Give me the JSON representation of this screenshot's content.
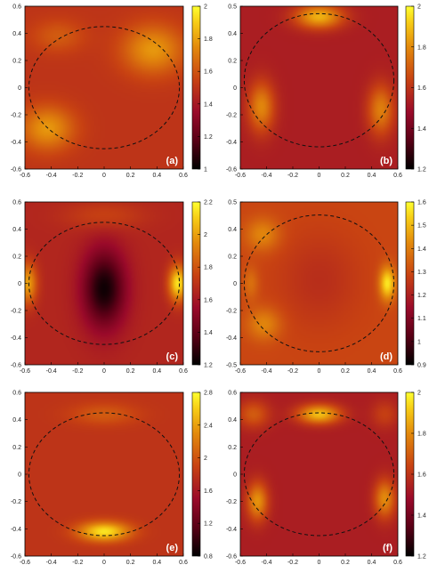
{
  "chart_data": [
    {
      "type": "heatmap",
      "panel_label": "(a)",
      "xlim": [
        -0.6,
        0.6
      ],
      "ylim": [
        -0.6,
        0.6
      ],
      "x_ticks": [
        "-0.6",
        "-0.4",
        "-0.2",
        "0",
        "0.2",
        "0.4",
        "0.6"
      ],
      "y_ticks": [
        "0.6",
        "0.4",
        "0.2",
        "0",
        "-0.2",
        "-0.4",
        "-0.6"
      ],
      "colorbar": {
        "range": [
          1,
          2
        ],
        "ticks": [
          "2",
          "1.8",
          "1.6",
          "1.4",
          "1.2",
          "1"
        ]
      },
      "background_level": 0.5,
      "ellipse": {
        "center": [
          0,
          0
        ],
        "rx": 0.57,
        "ry": 0.45,
        "style": "dashed"
      },
      "hotspots": [
        {
          "x": 0.37,
          "y": 0.28,
          "rx": 0.23,
          "ry": 0.18,
          "amp": 0.28
        },
        {
          "x": -0.43,
          "y": -0.3,
          "rx": 0.2,
          "ry": 0.16,
          "amp": 0.28
        },
        {
          "x": -0.35,
          "y": 0.38,
          "rx": 0.2,
          "ry": 0.12,
          "amp": 0.12
        }
      ]
    },
    {
      "type": "heatmap",
      "panel_label": "(b)",
      "xlim": [
        -0.6,
        0.6
      ],
      "ylim": [
        -0.6,
        0.5
      ],
      "x_ticks": [
        "-0.6",
        "-0.4",
        "-0.2",
        "0",
        "0.2",
        "0.4",
        "0.6"
      ],
      "y_ticks": [
        "0.5",
        "0.4",
        "0.2",
        "0",
        "-0.2",
        "-0.4",
        "-0.6"
      ],
      "colorbar": {
        "range": [
          1.2,
          2
        ],
        "ticks": [
          "2",
          "1.8",
          "1.6",
          "1.4",
          "1.2"
        ]
      },
      "background_level": 0.42,
      "ellipse": {
        "center": [
          0,
          0
        ],
        "rx": 0.57,
        "ry": 0.45,
        "style": "dashed"
      },
      "hotspots": [
        {
          "x": 0.0,
          "y": 0.43,
          "rx": 0.18,
          "ry": 0.08,
          "amp": 0.42
        },
        {
          "x": -0.44,
          "y": -0.18,
          "rx": 0.1,
          "ry": 0.17,
          "amp": 0.32
        },
        {
          "x": 0.47,
          "y": -0.2,
          "rx": 0.1,
          "ry": 0.17,
          "amp": 0.3
        }
      ]
    },
    {
      "type": "heatmap",
      "panel_label": "(c)",
      "xlim": [
        -0.6,
        0.6
      ],
      "ylim": [
        -0.6,
        0.6
      ],
      "x_ticks": [
        "-0.6",
        "-0.4",
        "-0.2",
        "0",
        "0.2",
        "0.4",
        "0.6"
      ],
      "y_ticks": [
        "0.6",
        "0.4",
        "0.2",
        "0",
        "-0.2",
        "-0.4",
        "-0.6"
      ],
      "colorbar": {
        "range": [
          1.2,
          2.2
        ],
        "ticks": [
          "2.2",
          "2",
          "1.8",
          "1.6",
          "1.4",
          "1.2"
        ]
      },
      "background_level": 0.45,
      "ellipse": {
        "center": [
          0,
          0
        ],
        "rx": 0.57,
        "ry": 0.45,
        "style": "dashed"
      },
      "hotspots": [
        {
          "x": 0.56,
          "y": 0.0,
          "rx": 0.07,
          "ry": 0.13,
          "amp": 0.5
        },
        {
          "x": -0.58,
          "y": 0.0,
          "rx": 0.07,
          "ry": 0.15,
          "amp": 0.35
        },
        {
          "x": 0.0,
          "y": -0.04,
          "rx": 0.16,
          "ry": 0.28,
          "amp": -0.42
        },
        {
          "x": 0.0,
          "y": 0.5,
          "rx": 0.3,
          "ry": 0.1,
          "amp": 0.1
        }
      ]
    },
    {
      "type": "heatmap",
      "panel_label": "(d)",
      "xlim": [
        -0.6,
        0.6
      ],
      "ylim": [
        -0.5,
        0.5
      ],
      "x_ticks": [
        "-0.6",
        "-0.4",
        "-0.2",
        "0",
        "0.2",
        "0.4",
        "0.6"
      ],
      "y_ticks": [
        "0.5",
        "0.4",
        "0.2",
        "0",
        "-0.2",
        "-0.4",
        "-0.5"
      ],
      "colorbar": {
        "range": [
          0.9,
          1.6
        ],
        "ticks": [
          "1.6",
          "1.5",
          "1.4",
          "1.3",
          "1.2",
          "1.1",
          "1",
          "0.9"
        ]
      },
      "background_level": 0.56,
      "ellipse": {
        "center": [
          0,
          0
        ],
        "rx": 0.57,
        "ry": 0.42,
        "style": "dashed"
      },
      "hotspots": [
        {
          "x": 0.52,
          "y": 0.0,
          "rx": 0.06,
          "ry": 0.1,
          "amp": 0.4
        },
        {
          "x": -0.43,
          "y": 0.3,
          "rx": 0.13,
          "ry": 0.1,
          "amp": 0.18
        },
        {
          "x": -0.42,
          "y": -0.25,
          "rx": 0.13,
          "ry": 0.1,
          "amp": 0.18
        },
        {
          "x": -0.52,
          "y": 0.0,
          "rx": 0.06,
          "ry": 0.1,
          "amp": 0.12
        },
        {
          "x": 0.0,
          "y": 0.02,
          "rx": 0.3,
          "ry": 0.28,
          "amp": -0.08
        }
      ]
    },
    {
      "type": "heatmap",
      "panel_label": "(e)",
      "xlim": [
        -0.6,
        0.6
      ],
      "ylim": [
        -0.6,
        0.6
      ],
      "x_ticks": [
        "-0.6",
        "-0.4",
        "-0.2",
        "0",
        "0.2",
        "0.4",
        "0.6"
      ],
      "y_ticks": [
        "0.6",
        "0.4",
        "0.2",
        "0",
        "-0.2",
        "-0.4",
        "-0.6"
      ],
      "colorbar": {
        "range": [
          0.8,
          2.8
        ],
        "ticks": [
          "2.8",
          "2.4",
          "2",
          "1.6",
          "1.2",
          "0.8"
        ]
      },
      "background_level": 0.5,
      "ellipse": {
        "center": [
          0,
          0
        ],
        "rx": 0.57,
        "ry": 0.45,
        "style": "dashed"
      },
      "hotspots": [
        {
          "x": 0.0,
          "y": -0.42,
          "rx": 0.19,
          "ry": 0.07,
          "amp": 0.45
        },
        {
          "x": 0.0,
          "y": 0.44,
          "rx": 0.25,
          "ry": 0.08,
          "amp": 0.12
        }
      ]
    },
    {
      "type": "heatmap",
      "panel_label": "(f)",
      "xlim": [
        -0.6,
        0.6
      ],
      "ylim": [
        -0.6,
        0.6
      ],
      "x_ticks": [
        "-0.6",
        "-0.4",
        "-0.2",
        "0",
        "0.2",
        "0.4",
        "0.6"
      ],
      "y_ticks": [
        "0.6",
        "0.4",
        "0.2",
        "0",
        "-0.2",
        "-0.4",
        "-0.6"
      ],
      "colorbar": {
        "range": [
          1.2,
          2
        ],
        "ticks": [
          "2",
          "1.8",
          "1.6",
          "1.4",
          "1.2"
        ]
      },
      "background_level": 0.42,
      "ellipse": {
        "center": [
          0,
          0
        ],
        "rx": 0.57,
        "ry": 0.45,
        "style": "dashed"
      },
      "hotspots": [
        {
          "x": 0.0,
          "y": 0.44,
          "rx": 0.16,
          "ry": 0.07,
          "amp": 0.45
        },
        {
          "x": -0.47,
          "y": -0.2,
          "rx": 0.08,
          "ry": 0.14,
          "amp": 0.35
        },
        {
          "x": 0.5,
          "y": -0.18,
          "rx": 0.08,
          "ry": 0.14,
          "amp": 0.33
        },
        {
          "x": -0.5,
          "y": 0.44,
          "rx": 0.12,
          "ry": 0.1,
          "amp": 0.2
        },
        {
          "x": 0.5,
          "y": 0.44,
          "rx": 0.1,
          "ry": 0.1,
          "amp": 0.12
        }
      ]
    }
  ]
}
